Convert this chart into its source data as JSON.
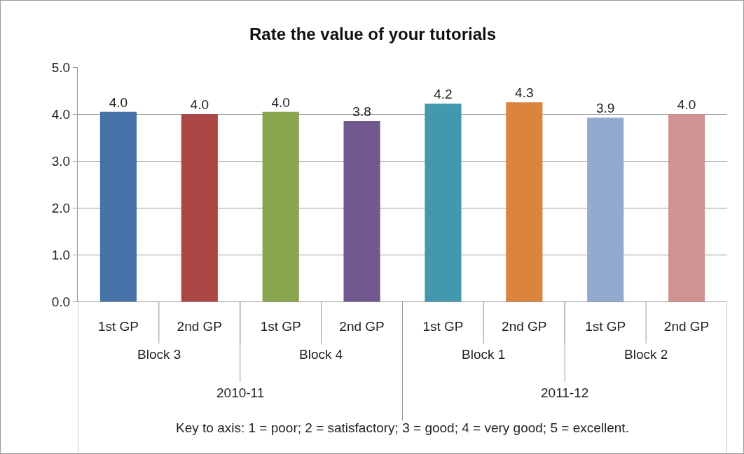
{
  "chart_data": {
    "type": "bar",
    "title": "Rate the value of your tutorials",
    "categories": [
      "1st GP",
      "2nd GP",
      "1st GP",
      "2nd GP",
      "1st GP",
      "2nd GP",
      "1st GP",
      "2nd GP"
    ],
    "values": [
      4.05,
      4.0,
      4.05,
      3.85,
      4.22,
      4.25,
      3.92,
      4.0
    ],
    "value_labels": [
      "4.0",
      "4.0",
      "4.0",
      "3.8",
      "4.2",
      "4.3",
      "3.9",
      "4.0"
    ],
    "colors": [
      "#4572a7",
      "#aa4643",
      "#89a54e",
      "#71588f",
      "#4198af",
      "#db843d",
      "#93a9cf",
      "#d19392"
    ],
    "ylim": [
      0,
      5
    ],
    "yticks": [
      {
        "value": 0,
        "label": "0.0"
      },
      {
        "value": 1,
        "label": "1.0"
      },
      {
        "value": 2,
        "label": "2.0"
      },
      {
        "value": 3,
        "label": "3.0"
      },
      {
        "value": 4,
        "label": "4.0"
      },
      {
        "value": 5,
        "label": "5.0"
      }
    ],
    "grid": "y",
    "annotations": [
      "Block 3",
      "Block 4",
      "Block 1",
      "Block 2",
      "2010-11",
      "2011-12",
      "Key to axis: 1 = poor; 2 = satisfactory; 3 = good; 4 = very good; 5 = excellent."
    ]
  }
}
